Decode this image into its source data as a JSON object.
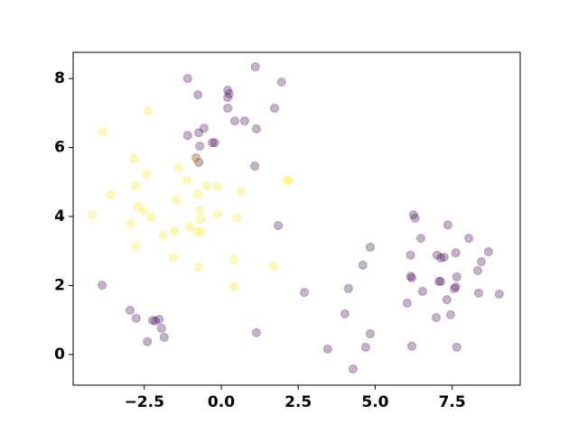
{
  "chart_data": {
    "type": "scatter",
    "xlim": [
      -4.81,
      9.71
    ],
    "ylim": [
      -0.89,
      8.76
    ],
    "xticks": [
      {
        "value": -2.5,
        "label": "−2.5"
      },
      {
        "value": 0,
        "label": "0.0"
      },
      {
        "value": 2.5,
        "label": "2.5"
      },
      {
        "value": 5,
        "label": "5.0"
      },
      {
        "value": 7.5,
        "label": "7.5"
      }
    ],
    "yticks": [
      0,
      2,
      4,
      6,
      8
    ],
    "opacity": 0.3,
    "series": [
      {
        "color": "#440154",
        "x": [
          -1.09,
          1.11,
          -0.76,
          1.96,
          0.21,
          0.26,
          0.21,
          1.73,
          0.21,
          0.44,
          0.76,
          -0.56,
          1.14,
          -1.09,
          -0.73,
          -0.29,
          -0.21,
          -0.7,
          -0.82,
          -0.73,
          1.09,
          1.85,
          -3.87,
          2.7,
          -2.96,
          -2.76,
          -2.23,
          -2.14,
          -2.02,
          -1.94,
          -1.85,
          -2.4,
          1.14,
          3.46,
          4.02,
          4.13,
          4.28,
          4.6,
          4.69,
          4.84,
          4.84,
          6.04,
          6.15,
          6.15,
          6.19,
          6.19,
          6.24,
          6.3,
          6.48,
          6.54,
          6.98,
          7.01,
          7.07,
          7.13,
          7.13,
          7.24,
          7.33,
          7.36,
          7.45,
          7.57,
          7.62,
          7.62,
          7.65,
          7.65,
          8.04,
          8.33,
          8.36,
          8.45,
          8.68,
          9.03
        ],
        "y": [
          8.0,
          8.34,
          7.53,
          7.9,
          7.66,
          7.56,
          7.45,
          7.14,
          7.14,
          6.77,
          6.77,
          6.56,
          6.54,
          6.35,
          6.43,
          6.14,
          6.14,
          6.04,
          5.7,
          5.57,
          5.46,
          3.74,
          2.01,
          1.8,
          1.28,
          1.05,
          0.99,
          0.97,
          1.02,
          0.76,
          0.5,
          0.37,
          0.63,
          0.16,
          1.18,
          1.91,
          -0.42,
          2.59,
          0.21,
          0.6,
          3.11,
          1.49,
          2.88,
          2.27,
          2.22,
          0.24,
          4.05,
          3.95,
          3.37,
          1.83,
          1.07,
          2.88,
          2.12,
          2.12,
          2.8,
          2.82,
          1.59,
          3.76,
          1.15,
          1.91,
          1.96,
          2.95,
          2.25,
          0.21,
          3.37,
          2.43,
          1.78,
          2.69,
          2.98,
          1.75
        ]
      },
      {
        "color": "#fde725",
        "x": [
          -4.19,
          -3.84,
          -3.58,
          -2.38,
          -2.84,
          -2.79,
          -2.7,
          -2.52,
          -2.93,
          -2.76,
          -2.43,
          -2.26,
          -1.88,
          -1.52,
          -1.55,
          -1.47,
          -1.38,
          -1.11,
          -1.03,
          -0.82,
          -0.76,
          -0.7,
          -0.67,
          -0.79,
          -0.65,
          -0.73,
          -0.47,
          -0.12,
          -0.12,
          0.41,
          0.41,
          0.5,
          0.65,
          1.7,
          2.14,
          2.2
        ],
        "y": [
          4.05,
          6.46,
          4.63,
          7.06,
          5.67,
          4.89,
          4.29,
          4.16,
          3.79,
          3.14,
          5.23,
          3.97,
          3.45,
          3.58,
          2.82,
          4.47,
          5.41,
          5.05,
          3.71,
          5.65,
          4.65,
          4.18,
          3.92,
          3.56,
          3.56,
          2.54,
          4.89,
          4.86,
          4.08,
          2.75,
          1.96,
          3.95,
          4.73,
          2.56,
          5.05,
          5.05
        ]
      }
    ]
  }
}
